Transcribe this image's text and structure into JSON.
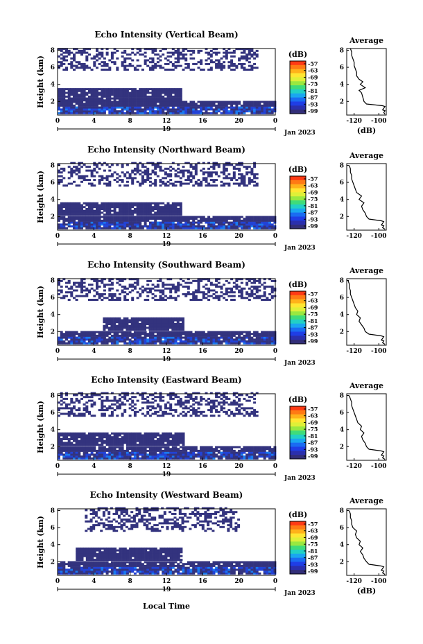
{
  "footer": {
    "xlabel": "Local Time"
  },
  "colorbar": {
    "unit": "(dB)",
    "ticks": [
      "-57",
      "-63",
      "-69",
      "-75",
      "-81",
      "-87",
      "-93",
      "-99"
    ],
    "colors": [
      "#ff3a14",
      "#ff7a14",
      "#ffb21a",
      "#ffe632",
      "#dff038",
      "#9ae840",
      "#3fdc7a",
      "#22d0c6",
      "#1aa6f0",
      "#1a6cf2",
      "#1f3ee6",
      "#2a2fae",
      "#322e78"
    ]
  },
  "colors": {
    "echo_dark": "#33337e",
    "echo_mid": "#2242d6",
    "echo_bright": "#1a7af0"
  },
  "chart_data": [
    {
      "type": "heatmap",
      "title": "Echo Intensity (Vertical Beam)",
      "ylabel": "Height (km)",
      "x_ticks": [
        "0",
        "4",
        "8",
        "12",
        "16",
        "20",
        "0"
      ],
      "x_date": "19",
      "x_date_suffix": "Jan 2023",
      "y_ticks": [
        "2",
        "4",
        "6",
        "8"
      ],
      "xlim": [
        0,
        24
      ],
      "ylim": [
        0.4,
        8.2
      ],
      "layers": [
        {
          "h0": 0.5,
          "h1": 1.9,
          "t0": 0,
          "t1": 24,
          "level": "dark"
        },
        {
          "h0": 2.0,
          "h1": 3.5,
          "t0": 0,
          "t1": 13.5,
          "level": "dark"
        },
        {
          "h0": 5.6,
          "h1": 8.2,
          "t0": 0,
          "t1": 22,
          "level": "sparse"
        }
      ],
      "profile": {
        "title": "Average",
        "xlabel": "(dB)",
        "x_ticks": [
          "-120",
          "-100"
        ],
        "y_ticks": [
          "2",
          "4",
          "6",
          "8"
        ],
        "xlim": [
          -126,
          -94
        ],
        "ylim": [
          0.4,
          8.2
        ],
        "height": [
          0.5,
          0.7,
          0.9,
          1.0,
          1.2,
          1.4,
          1.5,
          1.7,
          2.0,
          2.5,
          3.0,
          3.3,
          3.6,
          4.0,
          4.3,
          4.6,
          5.0,
          5.4,
          5.8,
          6.2,
          6.6,
          7.0,
          7.4,
          7.8,
          8.2
        ],
        "intensity": [
          -95,
          -96,
          -95,
          -97,
          -96,
          -95,
          -97,
          -110,
          -112,
          -113,
          -114,
          -116,
          -111,
          -115,
          -113,
          -116,
          -118,
          -118,
          -119,
          -120,
          -120,
          -121,
          -122,
          -122,
          -123
        ]
      }
    },
    {
      "type": "heatmap",
      "title": "Echo Intensity (Northward Beam)",
      "ylabel": "Height (km)",
      "x_ticks": [
        "0",
        "4",
        "8",
        "12",
        "16",
        "20",
        "0"
      ],
      "x_date": "19",
      "x_date_suffix": "Jan 2023",
      "y_ticks": [
        "2",
        "4",
        "6",
        "8"
      ],
      "xlim": [
        0,
        24
      ],
      "ylim": [
        0.4,
        8.2
      ],
      "layers": [
        {
          "h0": 0.5,
          "h1": 2.0,
          "t0": 0,
          "t1": 24,
          "level": "dark"
        },
        {
          "h0": 2.1,
          "h1": 3.6,
          "t0": 0,
          "t1": 13.5,
          "level": "dark"
        },
        {
          "h0": 5.5,
          "h1": 8.2,
          "t0": 0,
          "t1": 22,
          "level": "sparse"
        }
      ],
      "profile": {
        "title": "Average",
        "xlabel": "(dB)",
        "x_ticks": [
          "-120",
          "-100"
        ],
        "y_ticks": [
          "2",
          "4",
          "6",
          "8"
        ],
        "xlim": [
          -126,
          -94
        ],
        "ylim": [
          0.4,
          8.2
        ],
        "height": [
          0.5,
          0.7,
          0.9,
          1.0,
          1.2,
          1.4,
          1.5,
          1.7,
          2.0,
          2.4,
          2.8,
          3.2,
          3.6,
          4.0,
          4.4,
          4.8,
          5.2,
          5.6,
          6.0,
          6.4,
          6.8,
          7.2,
          7.6,
          8.0
        ],
        "intensity": [
          -95,
          -97,
          -96,
          -98,
          -97,
          -96,
          -98,
          -108,
          -110,
          -111,
          -113,
          -114,
          -112,
          -116,
          -114,
          -118,
          -119,
          -120,
          -121,
          -122,
          -122,
          -123,
          -123,
          -124
        ]
      }
    },
    {
      "type": "heatmap",
      "title": "Echo Intensity (Southward Beam)",
      "ylabel": "Height (km)",
      "x_ticks": [
        "0",
        "4",
        "8",
        "12",
        "16",
        "20",
        "0"
      ],
      "x_date": "19",
      "x_date_suffix": "Jan 2023",
      "y_ticks": [
        "2",
        "4",
        "6",
        "8"
      ],
      "xlim": [
        0,
        24
      ],
      "ylim": [
        0.4,
        8.2
      ],
      "layers": [
        {
          "h0": 0.5,
          "h1": 2.0,
          "t0": 0,
          "t1": 24,
          "level": "dark"
        },
        {
          "h0": 2.1,
          "h1": 3.6,
          "t0": 5,
          "t1": 13.8,
          "level": "dark"
        },
        {
          "h0": 5.6,
          "h1": 8.2,
          "t0": 0,
          "t1": 24,
          "level": "sparse"
        }
      ],
      "profile": {
        "title": "Average",
        "xlabel": "(dB)",
        "x_ticks": [
          "-120",
          "-100"
        ],
        "y_ticks": [
          "2",
          "4",
          "6",
          "8"
        ],
        "xlim": [
          -126,
          -94
        ],
        "ylim": [
          0.4,
          8.2
        ],
        "height": [
          0.5,
          0.7,
          0.9,
          1.0,
          1.2,
          1.4,
          1.5,
          1.7,
          2.0,
          2.4,
          2.8,
          3.2,
          3.6,
          4.0,
          4.4,
          4.8,
          5.2,
          5.6,
          6.0,
          6.4,
          6.8,
          7.2,
          7.6,
          8.0
        ],
        "intensity": [
          -95,
          -97,
          -96,
          -98,
          -97,
          -96,
          -98,
          -108,
          -111,
          -112,
          -114,
          -116,
          -115,
          -118,
          -117,
          -119,
          -120,
          -121,
          -122,
          -123,
          -123,
          -124,
          -124,
          -125
        ]
      }
    },
    {
      "type": "heatmap",
      "title": "Echo Intensity (Eastward Beam)",
      "ylabel": "Height (km)",
      "x_ticks": [
        "0",
        "4",
        "8",
        "12",
        "16",
        "20",
        "0"
      ],
      "x_date": "19",
      "x_date_suffix": "Jan 2023",
      "y_ticks": [
        "2",
        "4",
        "6",
        "8"
      ],
      "xlim": [
        0,
        24
      ],
      "ylim": [
        0.4,
        8.2
      ],
      "layers": [
        {
          "h0": 0.5,
          "h1": 2.0,
          "t0": 0,
          "t1": 24,
          "level": "dark"
        },
        {
          "h0": 2.1,
          "h1": 3.6,
          "t0": 0,
          "t1": 13.8,
          "level": "dark"
        },
        {
          "h0": 5.5,
          "h1": 8.2,
          "t0": 0,
          "t1": 22,
          "level": "sparse"
        }
      ],
      "profile": {
        "title": "Average",
        "xlabel": "(dB)",
        "x_ticks": [
          "-120",
          "-100"
        ],
        "y_ticks": [
          "2",
          "4",
          "6",
          "8"
        ],
        "xlim": [
          -126,
          -94
        ],
        "ylim": [
          0.4,
          8.2
        ],
        "height": [
          0.5,
          0.7,
          0.9,
          1.0,
          1.2,
          1.4,
          1.5,
          1.7,
          2.0,
          2.4,
          2.8,
          3.2,
          3.6,
          4.0,
          4.4,
          4.8,
          5.2,
          5.6,
          6.0,
          6.4,
          6.8,
          7.2,
          7.6,
          8.0
        ],
        "intensity": [
          -95,
          -97,
          -96,
          -98,
          -97,
          -96,
          -98,
          -108,
          -110,
          -111,
          -113,
          -114,
          -112,
          -115,
          -114,
          -117,
          -118,
          -119,
          -120,
          -121,
          -122,
          -122,
          -123,
          -124
        ]
      }
    },
    {
      "type": "heatmap",
      "title": "Echo Intensity (Westward Beam)",
      "ylabel": "Height (km)",
      "x_ticks": [
        "0",
        "4",
        "8",
        "12",
        "16",
        "20",
        "0"
      ],
      "x_date": "19",
      "x_date_suffix": "Jan 2023",
      "y_ticks": [
        "2",
        "4",
        "6",
        "8"
      ],
      "xlim": [
        0,
        24
      ],
      "ylim": [
        0.4,
        8.2
      ],
      "layers": [
        {
          "h0": 0.5,
          "h1": 2.0,
          "t0": 0,
          "t1": 24,
          "level": "dark"
        },
        {
          "h0": 2.1,
          "h1": 3.6,
          "t0": 2,
          "t1": 13.5,
          "level": "dark"
        },
        {
          "h0": 5.5,
          "h1": 8.2,
          "t0": 3,
          "t1": 20,
          "level": "sparse"
        }
      ],
      "profile": {
        "title": "Average",
        "xlabel": "(dB)",
        "x_ticks": [
          "-120",
          "-100"
        ],
        "y_ticks": [
          "2",
          "4",
          "6",
          "8"
        ],
        "xlim": [
          -126,
          -94
        ],
        "ylim": [
          0.4,
          8.2
        ],
        "height": [
          0.5,
          0.7,
          0.9,
          1.0,
          1.2,
          1.4,
          1.5,
          1.7,
          2.0,
          2.4,
          2.8,
          3.2,
          3.6,
          4.0,
          4.4,
          4.8,
          5.2,
          5.6,
          6.0,
          6.4,
          6.8,
          7.2,
          7.6,
          8.0
        ],
        "intensity": [
          -95,
          -97,
          -96,
          -98,
          -97,
          -96,
          -98,
          -108,
          -110,
          -112,
          -113,
          -115,
          -113,
          -116,
          -115,
          -118,
          -119,
          -118,
          -121,
          -122,
          -122,
          -123,
          -123,
          -124
        ]
      }
    }
  ]
}
